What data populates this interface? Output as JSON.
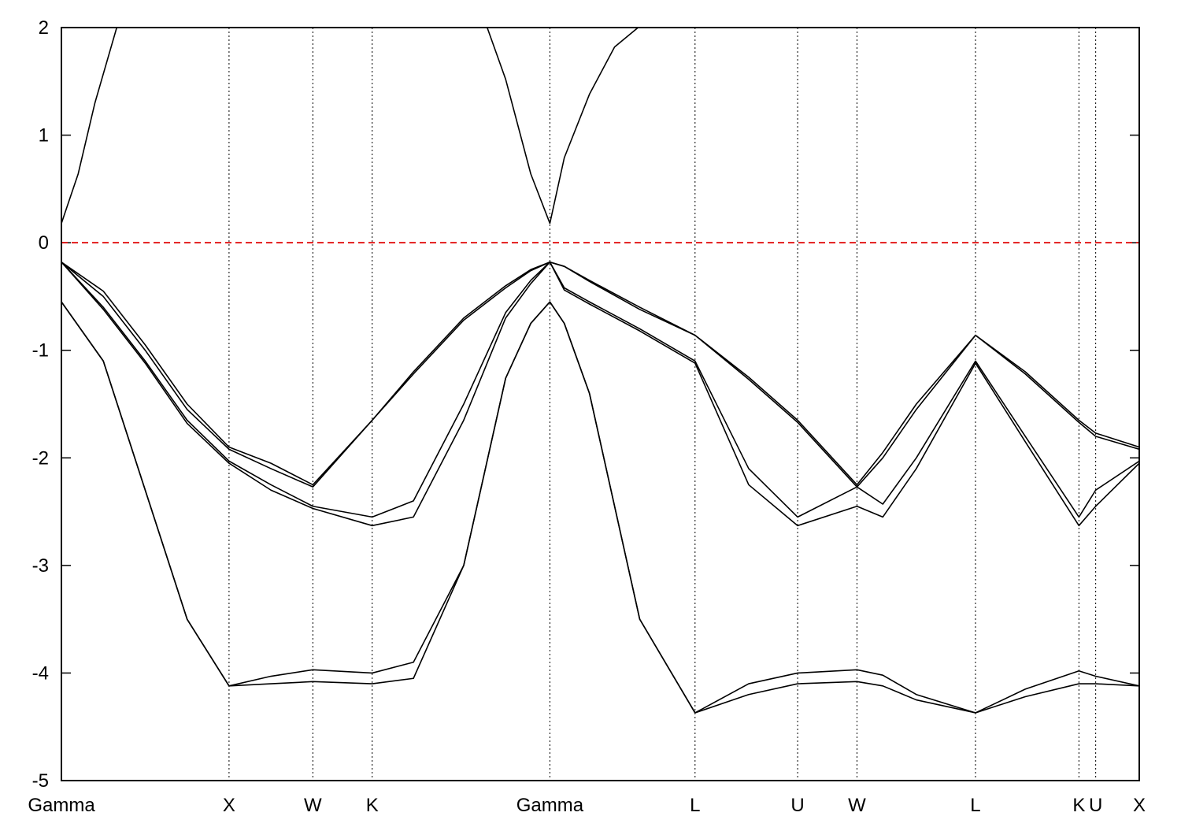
{
  "chart_data": {
    "type": "line",
    "x": [
      0,
      0.25,
      0.5,
      0.75,
      1.0,
      1.25,
      1.5,
      1.854,
      2.1,
      2.4,
      2.65,
      2.8,
      2.914,
      3.0,
      3.15,
      3.45,
      3.78,
      4.1,
      4.392,
      4.746,
      4.9,
      5.1,
      5.453,
      5.75,
      6.07,
      6.17,
      6.43
    ],
    "series": [
      {
        "color": "#000000",
        "values": [
          -0.18,
          -0.45,
          -0.95,
          -1.5,
          -1.9,
          -2.05,
          -2.25,
          -1.65,
          -1.2,
          -0.7,
          -0.4,
          -0.25,
          -0.18,
          -0.22,
          -0.35,
          -0.6,
          -0.86,
          -1.25,
          -1.65,
          -2.25,
          -1.95,
          -1.5,
          -0.86,
          -1.2,
          -1.65,
          -1.77,
          -1.9
        ]
      },
      {
        "color": "#000000",
        "values": [
          -0.18,
          -0.5,
          -1.0,
          -1.55,
          -1.92,
          -2.1,
          -2.27,
          -1.65,
          -1.22,
          -0.72,
          -0.42,
          -0.26,
          -0.18,
          -0.22,
          -0.36,
          -0.62,
          -0.86,
          -1.27,
          -1.67,
          -2.27,
          -2.0,
          -1.55,
          -0.86,
          -1.22,
          -1.67,
          -1.8,
          -1.92
        ]
      },
      {
        "color": "#000000",
        "values": [
          -0.18,
          -0.6,
          -1.1,
          -1.65,
          -2.03,
          -2.25,
          -2.45,
          -2.55,
          -2.4,
          -1.5,
          -0.65,
          -0.35,
          -0.18,
          -0.42,
          -0.55,
          -0.8,
          -1.1,
          -2.1,
          -2.55,
          -2.27,
          -2.43,
          -2.0,
          -1.1,
          -1.8,
          -2.55,
          -2.3,
          -2.03
        ]
      },
      {
        "color": "#000000",
        "values": [
          -0.18,
          -0.62,
          -1.12,
          -1.68,
          -2.05,
          -2.3,
          -2.47,
          -2.63,
          -2.55,
          -1.65,
          -0.7,
          -0.38,
          -0.18,
          -0.44,
          -0.57,
          -0.82,
          -1.12,
          -2.25,
          -2.63,
          -2.45,
          -2.55,
          -2.1,
          -1.12,
          -1.85,
          -2.63,
          -2.45,
          -2.05
        ]
      },
      {
        "color": "#000000",
        "values": [
          -0.55,
          -1.1,
          -2.3,
          -3.5,
          -4.12,
          -4.1,
          -4.08,
          -4.1,
          -4.05,
          -3.0,
          -1.26,
          -0.75,
          -0.55,
          -0.75,
          -1.4,
          -3.5,
          -4.37,
          -4.2,
          -4.1,
          -4.08,
          -4.12,
          -4.25,
          -4.37,
          -4.22,
          -4.1,
          -4.1,
          -4.12
        ]
      },
      {
        "color": "#000000",
        "values": [
          -0.55,
          -1.1,
          -2.3,
          -3.5,
          -4.12,
          -4.03,
          -3.97,
          -4.0,
          -3.9,
          -3.0,
          -1.26,
          -0.75,
          -0.55,
          -0.75,
          -1.4,
          -3.5,
          -4.37,
          -4.1,
          -4.0,
          -3.97,
          -4.02,
          -4.2,
          -4.37,
          -4.15,
          -3.98,
          -4.03,
          -4.12
        ]
      },
      {
        "color": "#000000",
        "x": [
          0,
          0.1,
          0.2,
          0.33,
          2.54,
          2.65,
          2.8,
          2.914,
          3.0,
          3.15,
          3.3,
          3.44
        ],
        "values": [
          0.18,
          0.64,
          1.3,
          2.0,
          2.0,
          1.52,
          0.64,
          0.18,
          0.79,
          1.38,
          1.82,
          2.0
        ]
      }
    ],
    "reference_line": 0,
    "reference_color": "#e00000",
    "xlim": [
      0,
      6.43
    ],
    "ylim": [
      -5,
      2
    ],
    "xticks": [
      {
        "value": 0,
        "label": "Gamma"
      },
      {
        "value": 1.0,
        "label": "X"
      },
      {
        "value": 1.5,
        "label": "W"
      },
      {
        "value": 1.854,
        "label": "K"
      },
      {
        "value": 2.914,
        "label": "Gamma"
      },
      {
        "value": 3.78,
        "label": "L"
      },
      {
        "value": 4.392,
        "label": "U"
      },
      {
        "value": 4.746,
        "label": "W"
      },
      {
        "value": 5.453,
        "label": "L"
      },
      {
        "value": 6.07,
        "label": "K"
      },
      {
        "value": 6.17,
        "label": "U"
      },
      {
        "value": 6.43,
        "label": "X"
      }
    ],
    "yticks": [
      2,
      1,
      0,
      -1,
      -2,
      -3,
      -4,
      -5
    ],
    "grid": true
  }
}
